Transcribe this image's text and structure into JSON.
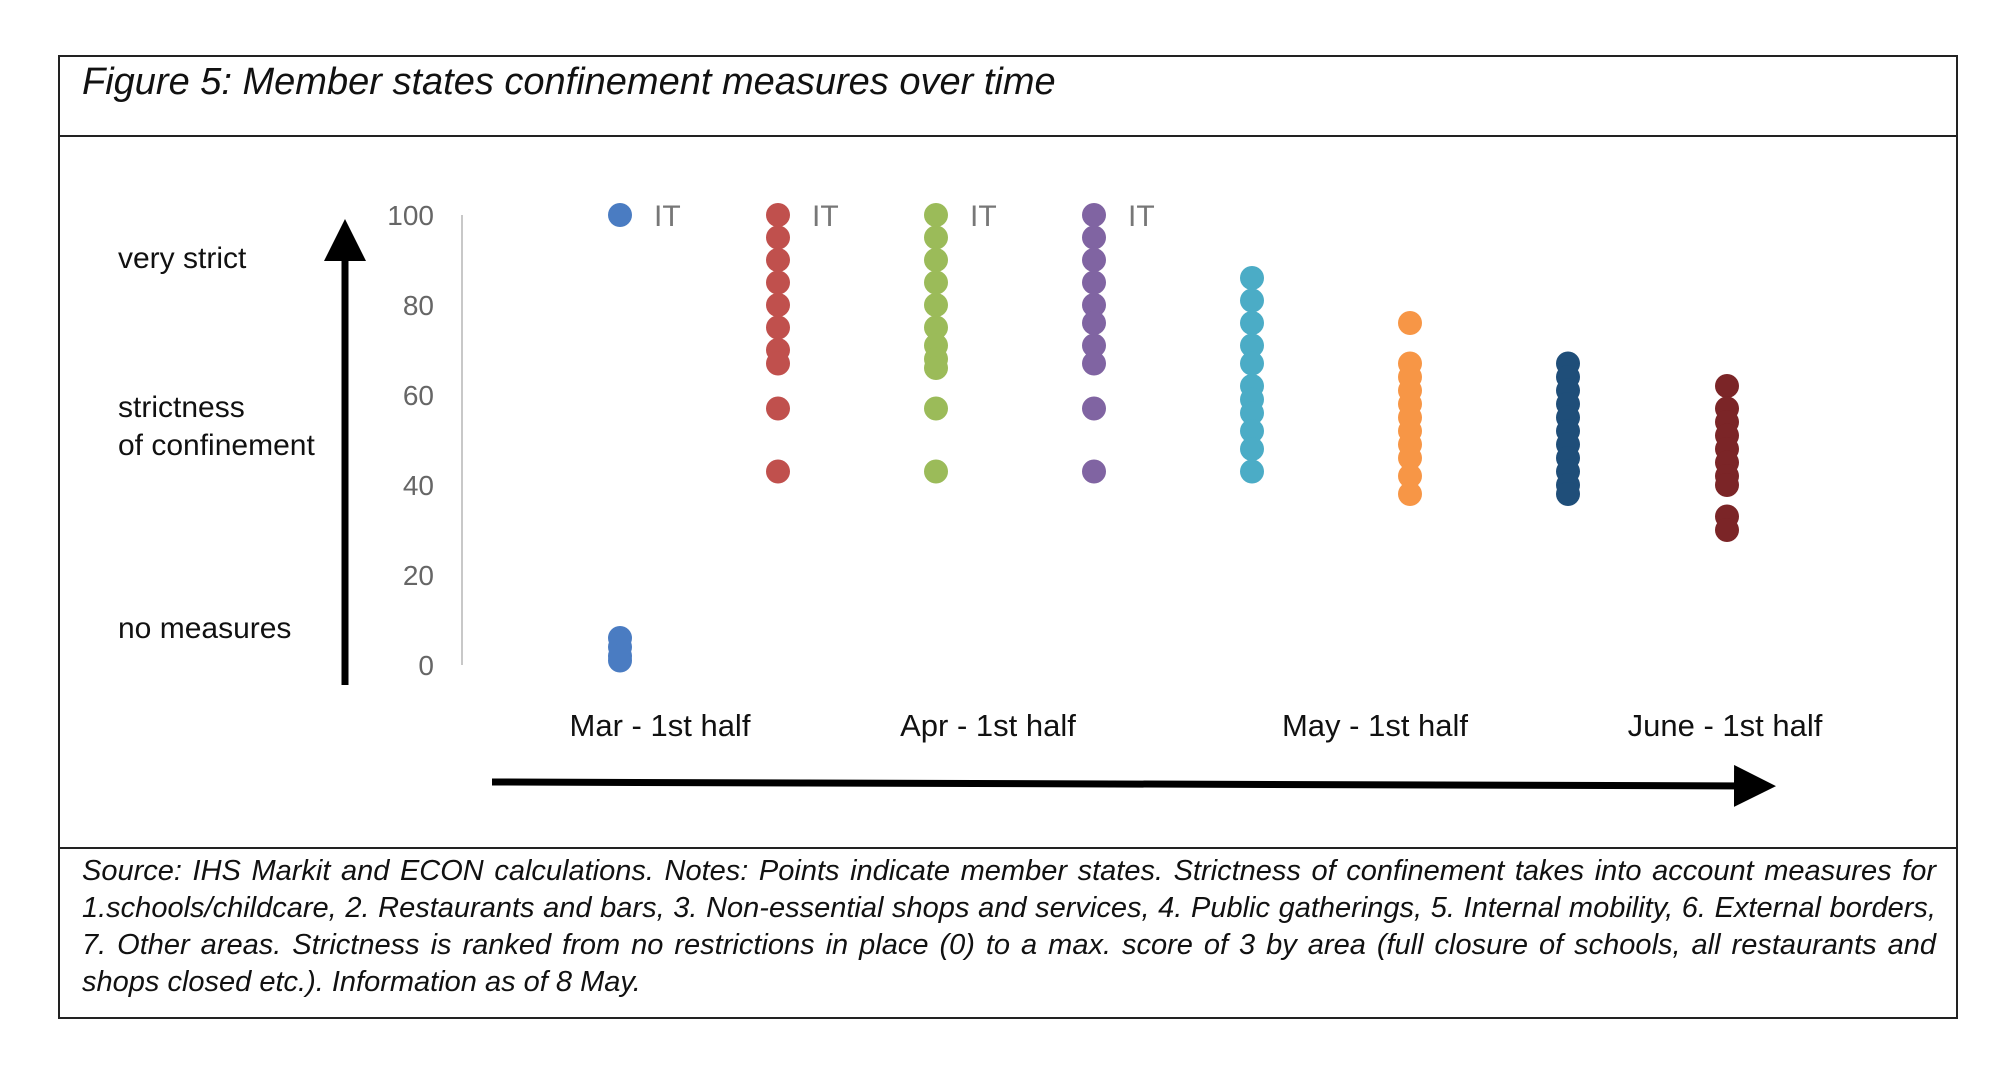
{
  "figure": {
    "title": "Figure 5: Member states confinement measures over time",
    "side_labels": {
      "top": "very strict",
      "middle_line1": "strictness",
      "middle_line2": "of confinement",
      "bottom": "no measures"
    },
    "source_note": "Source: IHS Markit and ECON calculations. Notes: Points indicate member states. Strictness of confinement takes into account measures for 1.schools/childcare, 2. Restaurants and bars, 3. Non-essential shops and services, 4. Public gatherings, 5. Internal mobility, 6. External borders, 7. Other areas. Strictness is ranked from no restrictions in place (0) to a max. score of 3 by area (full closure of schools, all restaurants and shops closed etc.). Information as of 8 May."
  },
  "chart_data": {
    "type": "scatter",
    "title": "Figure 5: Member states confinement measures over time",
    "xlabel": "",
    "ylabel": "strictness of confinement",
    "ylim": [
      0,
      100
    ],
    "yticks": [
      0,
      20,
      40,
      60,
      80,
      100
    ],
    "grid": false,
    "x_axis_labels": [
      "Mar - 1st half",
      "Apr - 1st half",
      "May - 1st half",
      "June - 1st half"
    ],
    "series": [
      {
        "x": "Mar - 1st half (1)",
        "color": "#4a7cc2",
        "values": [
          100,
          6,
          4,
          2,
          1
        ],
        "annotation": {
          "value": 100,
          "text": "IT"
        }
      },
      {
        "x": "Mar - 1st half (2)",
        "color": "#c0504d",
        "values": [
          100,
          95,
          90,
          85,
          80,
          75,
          70,
          67,
          57,
          43
        ],
        "annotation": {
          "value": 100,
          "text": "IT"
        }
      },
      {
        "x": "Apr - 1st half (1)",
        "color": "#9bbb59",
        "values": [
          100,
          95,
          90,
          85,
          80,
          75,
          71,
          68,
          66,
          57,
          43
        ],
        "annotation": {
          "value": 100,
          "text": "IT"
        }
      },
      {
        "x": "Apr - 1st half (2)",
        "color": "#8064a2",
        "values": [
          100,
          95,
          90,
          85,
          80,
          76,
          71,
          67,
          57,
          43
        ],
        "annotation": {
          "value": 100,
          "text": "IT"
        }
      },
      {
        "x": "May - 1st half (1)",
        "color": "#4bacc6",
        "values": [
          86,
          81,
          76,
          71,
          67,
          62,
          59,
          56,
          52,
          48,
          43
        ]
      },
      {
        "x": "May - 1st half (2)",
        "color": "#f79646",
        "values": [
          76,
          67,
          64,
          61,
          58,
          55,
          52,
          49,
          46,
          42,
          38
        ]
      },
      {
        "x": "June - 1st half (1)",
        "color": "#1f4e79",
        "values": [
          67,
          64,
          61,
          58,
          55,
          52,
          49,
          46,
          43,
          40,
          38
        ]
      },
      {
        "x": "June - 1st half (2)",
        "color": "#7b2527",
        "values": [
          62,
          57,
          54,
          51,
          48,
          45,
          42,
          40,
          33,
          30
        ]
      }
    ]
  }
}
